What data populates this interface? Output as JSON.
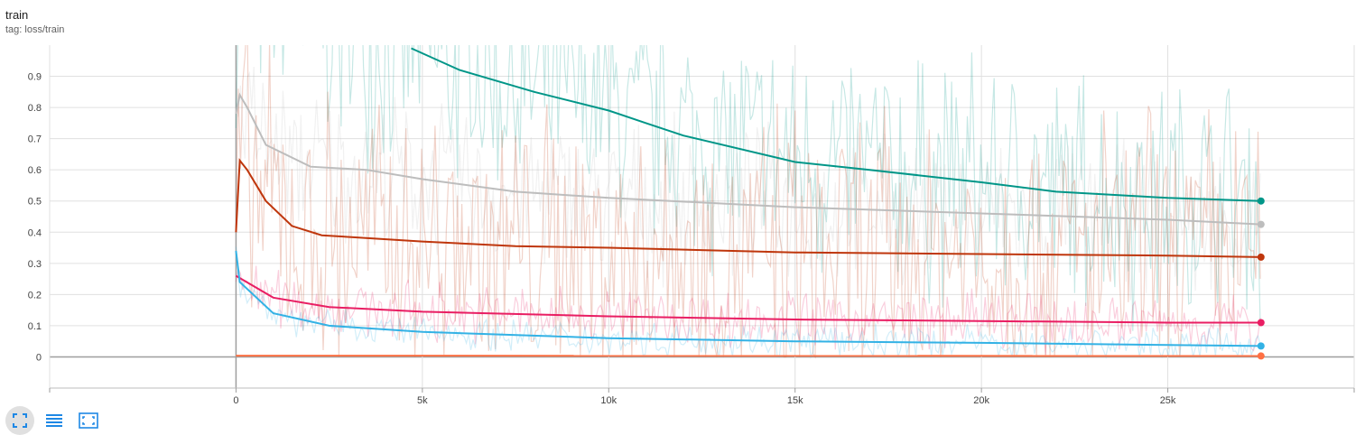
{
  "card": {
    "title": "train",
    "tag": "tag: loss/train"
  },
  "toolbar": {
    "buttons": [
      {
        "name": "fit-domain-button",
        "icon": "expand-corners-icon",
        "active": true
      },
      {
        "name": "toggle-log-scale-button",
        "icon": "list-lines-icon",
        "active": false
      },
      {
        "name": "data-download-button",
        "icon": "fullscreen-frame-icon",
        "active": false
      }
    ],
    "icon_color": "#1e88e5"
  },
  "chart_data": {
    "type": "line",
    "title": "train",
    "xlabel": "",
    "ylabel": "",
    "xlim": [
      -5000,
      30000
    ],
    "ylim": [
      -0.1,
      1.0
    ],
    "x_ticks": [
      0,
      5000,
      10000,
      15000,
      20000,
      25000
    ],
    "x_tick_labels": [
      "0",
      "5k",
      "10k",
      "15k",
      "20k",
      "25k"
    ],
    "y_ticks": [
      0,
      0.1,
      0.2,
      0.3,
      0.4,
      0.5,
      0.6,
      0.7,
      0.8,
      0.9
    ],
    "y_tick_labels": [
      "0",
      "0.1",
      "0.2",
      "0.3",
      "0.4",
      "0.5",
      "0.6",
      "0.7",
      "0.8",
      "0.9"
    ],
    "grid": true,
    "legend": "none",
    "series": [
      {
        "color": "#009688",
        "smoothed": [
          [
            4700,
            0.99
          ],
          [
            6000,
            0.92
          ],
          [
            8000,
            0.85
          ],
          [
            10000,
            0.79
          ],
          [
            11000,
            0.75
          ],
          [
            12000,
            0.71
          ],
          [
            15000,
            0.625
          ],
          [
            17000,
            0.6
          ],
          [
            20000,
            0.56
          ],
          [
            22000,
            0.53
          ],
          [
            25000,
            0.51
          ],
          [
            27500,
            0.5
          ]
        ],
        "raw_noise": 0.3
      },
      {
        "color": "#bdbdbd",
        "smoothed": [
          [
            0,
            0.78
          ],
          [
            100,
            0.84
          ],
          [
            300,
            0.8
          ],
          [
            800,
            0.68
          ],
          [
            2000,
            0.61
          ],
          [
            3500,
            0.6
          ],
          [
            5000,
            0.57
          ],
          [
            7500,
            0.53
          ],
          [
            10000,
            0.51
          ],
          [
            15000,
            0.48
          ],
          [
            20000,
            0.46
          ],
          [
            25000,
            0.44
          ],
          [
            27500,
            0.425
          ]
        ],
        "raw_noise": 0.18
      },
      {
        "color": "#bf360c",
        "smoothed": [
          [
            0,
            0.4
          ],
          [
            100,
            0.63
          ],
          [
            300,
            0.6
          ],
          [
            800,
            0.5
          ],
          [
            1500,
            0.42
          ],
          [
            2300,
            0.39
          ],
          [
            3000,
            0.385
          ],
          [
            5000,
            0.37
          ],
          [
            7500,
            0.355
          ],
          [
            10000,
            0.35
          ],
          [
            15000,
            0.335
          ],
          [
            20000,
            0.33
          ],
          [
            25000,
            0.325
          ],
          [
            27500,
            0.32
          ]
        ],
        "raw_noise": 0.35
      },
      {
        "color": "#e91e63",
        "smoothed": [
          [
            0,
            0.26
          ],
          [
            1000,
            0.19
          ],
          [
            2500,
            0.16
          ],
          [
            5000,
            0.145
          ],
          [
            10000,
            0.13
          ],
          [
            15000,
            0.12
          ],
          [
            20000,
            0.115
          ],
          [
            25000,
            0.11
          ],
          [
            27500,
            0.11
          ]
        ],
        "raw_noise": 0.07
      },
      {
        "color": "#33b2e5",
        "smoothed": [
          [
            0,
            0.34
          ],
          [
            100,
            0.24
          ],
          [
            1000,
            0.14
          ],
          [
            2500,
            0.1
          ],
          [
            5000,
            0.08
          ],
          [
            10000,
            0.06
          ],
          [
            15000,
            0.05
          ],
          [
            20000,
            0.045
          ],
          [
            25000,
            0.038
          ],
          [
            27500,
            0.035
          ]
        ],
        "raw_noise": 0.04
      },
      {
        "color": "#ff7043",
        "smoothed": [
          [
            0,
            0.004
          ],
          [
            27500,
            0.003
          ]
        ],
        "raw_noise": 0.0
      }
    ]
  }
}
